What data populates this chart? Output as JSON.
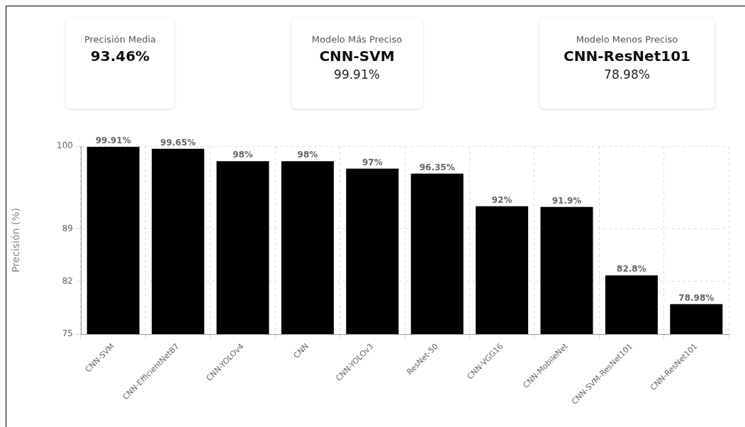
{
  "chart_data": [
    {
      "type": "other",
      "title": "Precisión Media",
      "subtitle": "93.46%"
    },
    {
      "type": "other",
      "title": "Modelo Más Preciso",
      "subtitle": "CNN-SVM",
      "annotations": [
        "99.91%"
      ]
    },
    {
      "type": "other",
      "title": "Modelo Menos Preciso",
      "subtitle": "CNN-ResNet101",
      "annotations": [
        "78.98%"
      ]
    },
    {
      "type": "bar",
      "ylabel": "Precisión (%)",
      "categories": [
        "CNN-SVM",
        "CNN-EfficientNetB7",
        "CNN-YOLOv4",
        "CNN",
        "CNN-YOLOv3",
        "ResNet-50",
        "CNN-VGG16",
        "CNN-MobileNet",
        "CNN-SVM-ResNet101",
        "CNN-ResNet101"
      ],
      "values": [
        99.91,
        99.65,
        98,
        98,
        97,
        96.35,
        92,
        91.9,
        82.8,
        78.98
      ],
      "value_labels": [
        "99.91%",
        "99.65%",
        "98%",
        "98%",
        "97%",
        "96.35%",
        "92%",
        "91.9%",
        "82.8%",
        "78.98%"
      ],
      "color": "#000000",
      "ylim": [
        75,
        100
      ],
      "yticks": [
        75,
        82,
        89,
        100
      ],
      "grid": true
    }
  ]
}
